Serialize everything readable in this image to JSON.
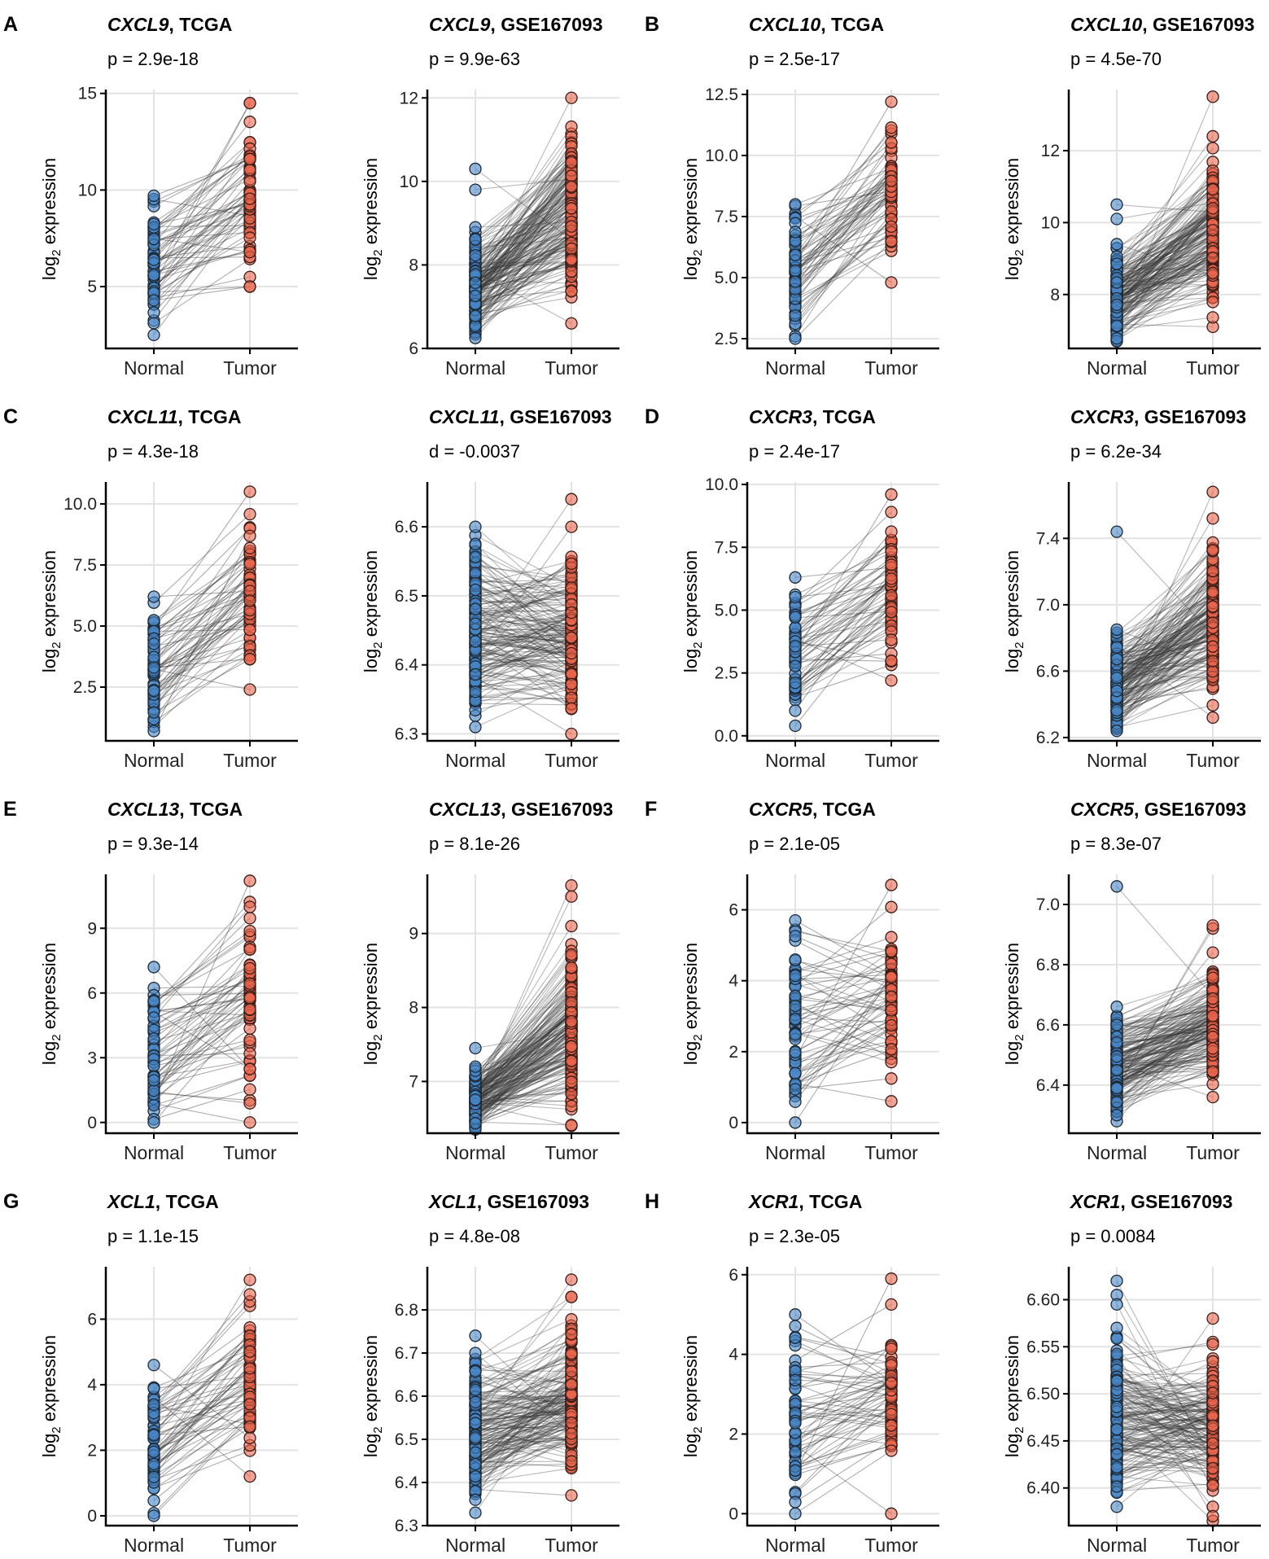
{
  "figure": {
    "ylabel_main": "log",
    "ylabel_sub": "2",
    "ylabel_rest": " expression",
    "categories": [
      "Normal",
      "Tumor"
    ],
    "colors": {
      "normal": "#4a86c5",
      "tumor": "#e8654f",
      "line": "#333333",
      "grid": "#e3e3e3",
      "axis": "#000000"
    }
  },
  "chart_data": [
    {
      "type": "scatter",
      "panel_letter": "A",
      "gene": "CXCL9",
      "dataset": "TCGA",
      "stat": "p = 2.9e-18",
      "ylim": [
        1.8,
        15.2
      ],
      "ticks": [
        5,
        10,
        15
      ],
      "tick_labels": [
        "5",
        "10",
        "15"
      ],
      "n_pairs": 60,
      "normal_range": [
        2.5,
        9.7
      ],
      "tumor_range": [
        5.0,
        14.5
      ],
      "outliers_normal": [],
      "outliers_tumor": [
        14.5,
        5.0
      ]
    },
    {
      "type": "scatter",
      "panel_letter": "",
      "gene": "CXCL9",
      "dataset": "GSE167093",
      "stat": "p = 9.9e-63",
      "ylim": [
        6.0,
        12.2
      ],
      "ticks": [
        6,
        8,
        10,
        12
      ],
      "tick_labels": [
        "6",
        "8",
        "10",
        "12"
      ],
      "n_pairs": 180,
      "normal_range": [
        6.25,
        8.9
      ],
      "tumor_range": [
        6.6,
        12.0
      ],
      "outliers_normal": [
        10.3,
        9.8
      ],
      "outliers_tumor": []
    },
    {
      "type": "scatter",
      "panel_letter": "B",
      "gene": "CXCL10",
      "dataset": "TCGA",
      "stat": "p = 2.5e-17",
      "ylim": [
        2.1,
        12.7
      ],
      "ticks": [
        2.5,
        5.0,
        7.5,
        10.0,
        12.5
      ],
      "tick_labels": [
        "2.5",
        "5.0",
        "7.5",
        "10.0",
        "12.5"
      ],
      "n_pairs": 60,
      "normal_range": [
        2.5,
        8.0
      ],
      "tumor_range": [
        4.8,
        12.2
      ],
      "outliers_normal": [],
      "outliers_tumor": []
    },
    {
      "type": "scatter",
      "panel_letter": "",
      "gene": "CXCL10",
      "dataset": "GSE167093",
      "stat": "p = 4.5e-70",
      "ylim": [
        6.5,
        13.7
      ],
      "ticks": [
        8,
        10,
        12
      ],
      "tick_labels": [
        "8",
        "10",
        "12"
      ],
      "n_pairs": 180,
      "normal_range": [
        6.7,
        9.4
      ],
      "tumor_range": [
        7.1,
        12.4
      ],
      "outliers_normal": [
        10.5,
        10.1
      ],
      "outliers_tumor": [
        13.5
      ]
    },
    {
      "type": "scatter",
      "panel_letter": "C",
      "gene": "CXCL11",
      "dataset": "TCGA",
      "stat": "p = 4.3e-18",
      "ylim": [
        0.3,
        10.9
      ],
      "ticks": [
        2.5,
        5.0,
        7.5,
        10.0
      ],
      "tick_labels": [
        "2.5",
        "5.0",
        "7.5",
        "10.0"
      ],
      "n_pairs": 60,
      "normal_range": [
        0.7,
        6.2
      ],
      "tumor_range": [
        2.4,
        10.5
      ],
      "outliers_normal": [],
      "outliers_tumor": []
    },
    {
      "type": "scatter",
      "panel_letter": "",
      "gene": "CXCL11",
      "dataset": "GSE167093",
      "stat": "d = -0.0037",
      "ylim": [
        6.29,
        6.665
      ],
      "ticks": [
        6.3,
        6.4,
        6.5,
        6.6
      ],
      "tick_labels": [
        "6.3",
        "6.4",
        "6.5",
        "6.6"
      ],
      "n_pairs": 180,
      "normal_range": [
        6.31,
        6.6
      ],
      "tumor_range": [
        6.3,
        6.6
      ],
      "outliers_normal": [],
      "outliers_tumor": [
        6.64
      ]
    },
    {
      "type": "scatter",
      "panel_letter": "D",
      "gene": "CXCR3",
      "dataset": "TCGA",
      "stat": "p = 2.4e-17",
      "ylim": [
        -0.2,
        10.1
      ],
      "ticks": [
        0.0,
        2.5,
        5.0,
        7.5,
        10.0
      ],
      "tick_labels": [
        "0.0",
        "2.5",
        "5.0",
        "7.5",
        "10.0"
      ],
      "n_pairs": 60,
      "normal_range": [
        1.0,
        6.3
      ],
      "tumor_range": [
        2.2,
        9.6
      ],
      "outliers_normal": [
        0.4
      ],
      "outliers_tumor": []
    },
    {
      "type": "scatter",
      "panel_letter": "",
      "gene": "CXCR3",
      "dataset": "GSE167093",
      "stat": "p = 6.2e-34",
      "ylim": [
        6.18,
        7.74
      ],
      "ticks": [
        6.2,
        6.6,
        7.0,
        7.4
      ],
      "tick_labels": [
        "6.2",
        "6.6",
        "7.0",
        "7.4"
      ],
      "n_pairs": 180,
      "normal_range": [
        6.24,
        6.85
      ],
      "tumor_range": [
        6.32,
        7.52
      ],
      "outliers_normal": [
        7.44
      ],
      "outliers_tumor": [
        7.68
      ]
    },
    {
      "type": "scatter",
      "panel_letter": "E",
      "gene": "CXCL13",
      "dataset": "TCGA",
      "stat": "p = 9.3e-14",
      "ylim": [
        -0.5,
        11.5
      ],
      "ticks": [
        0,
        3,
        6,
        9
      ],
      "tick_labels": [
        "0",
        "3",
        "6",
        "9"
      ],
      "n_pairs": 60,
      "normal_range": [
        0.0,
        7.2
      ],
      "tumor_range": [
        0.0,
        11.2
      ],
      "outliers_normal": [],
      "outliers_tumor": []
    },
    {
      "type": "scatter",
      "panel_letter": "",
      "gene": "CXCL13",
      "dataset": "GSE167093",
      "stat": "p = 8.1e-26",
      "ylim": [
        6.3,
        9.8
      ],
      "ticks": [
        7,
        8,
        9
      ],
      "tick_labels": [
        "7",
        "8",
        "9"
      ],
      "n_pairs": 180,
      "normal_range": [
        6.35,
        7.2
      ],
      "tumor_range": [
        6.4,
        9.1
      ],
      "outliers_normal": [
        7.45
      ],
      "outliers_tumor": [
        9.65,
        9.5
      ]
    },
    {
      "type": "scatter",
      "panel_letter": "F",
      "gene": "CXCR5",
      "dataset": "TCGA",
      "stat": "p = 2.1e-05",
      "ylim": [
        -0.3,
        7.0
      ],
      "ticks": [
        0,
        2,
        4,
        6
      ],
      "tick_labels": [
        "0",
        "2",
        "4",
        "6"
      ],
      "n_pairs": 60,
      "normal_range": [
        0.0,
        5.7
      ],
      "tumor_range": [
        0.6,
        6.7
      ],
      "outliers_normal": [],
      "outliers_tumor": []
    },
    {
      "type": "scatter",
      "panel_letter": "",
      "gene": "CXCR5",
      "dataset": "GSE167093",
      "stat": "p = 8.3e-07",
      "ylim": [
        6.24,
        7.1
      ],
      "ticks": [
        6.4,
        6.6,
        6.8,
        7.0
      ],
      "tick_labels": [
        "6.4",
        "6.6",
        "6.8",
        "7.0"
      ],
      "n_pairs": 180,
      "normal_range": [
        6.3,
        6.66
      ],
      "tumor_range": [
        6.36,
        6.84
      ],
      "outliers_normal": [
        7.06,
        6.28
      ],
      "outliers_tumor": [
        6.93,
        6.92
      ]
    },
    {
      "type": "scatter",
      "panel_letter": "G",
      "gene": "XCL1",
      "dataset": "TCGA",
      "stat": "p = 1.1e-15",
      "ylim": [
        -0.3,
        7.6
      ],
      "ticks": [
        0,
        2,
        4,
        6
      ],
      "tick_labels": [
        "0",
        "2",
        "4",
        "6"
      ],
      "n_pairs": 60,
      "normal_range": [
        0.0,
        4.6
      ],
      "tumor_range": [
        1.2,
        7.2
      ],
      "outliers_normal": [],
      "outliers_tumor": []
    },
    {
      "type": "scatter",
      "panel_letter": "",
      "gene": "XCL1",
      "dataset": "GSE167093",
      "stat": "p = 4.8e-08",
      "ylim": [
        6.3,
        6.9
      ],
      "ticks": [
        6.3,
        6.4,
        6.5,
        6.6,
        6.7,
        6.8
      ],
      "tick_labels": [
        "6.3",
        "6.4",
        "6.5",
        "6.6",
        "6.7",
        "6.8"
      ],
      "n_pairs": 180,
      "normal_range": [
        6.36,
        6.7
      ],
      "tumor_range": [
        6.37,
        6.83
      ],
      "outliers_normal": [
        6.74,
        6.33
      ],
      "outliers_tumor": [
        6.87
      ]
    },
    {
      "type": "scatter",
      "panel_letter": "H",
      "gene": "XCR1",
      "dataset": "TCGA",
      "stat": "p = 2.3e-05",
      "ylim": [
        -0.3,
        6.2
      ],
      "ticks": [
        0,
        2,
        4,
        6
      ],
      "tick_labels": [
        "0",
        "2",
        "4",
        "6"
      ],
      "n_pairs": 60,
      "normal_range": [
        0.0,
        5.0
      ],
      "tumor_range": [
        0.0,
        5.9
      ],
      "outliers_normal": [],
      "outliers_tumor": []
    },
    {
      "type": "scatter",
      "panel_letter": "",
      "gene": "XCR1",
      "dataset": "GSE167093",
      "stat": "p = 0.0084",
      "ylim": [
        6.36,
        6.635
      ],
      "ticks": [
        6.4,
        6.45,
        6.5,
        6.55,
        6.6
      ],
      "tick_labels": [
        "6.40",
        "6.45",
        "6.50",
        "6.55",
        "6.60"
      ],
      "n_pairs": 180,
      "normal_range": [
        6.38,
        6.57
      ],
      "tumor_range": [
        6.38,
        6.555
      ],
      "outliers_normal": [
        6.62,
        6.605,
        6.595
      ],
      "outliers_tumor": [
        6.58,
        6.37,
        6.365
      ]
    }
  ]
}
